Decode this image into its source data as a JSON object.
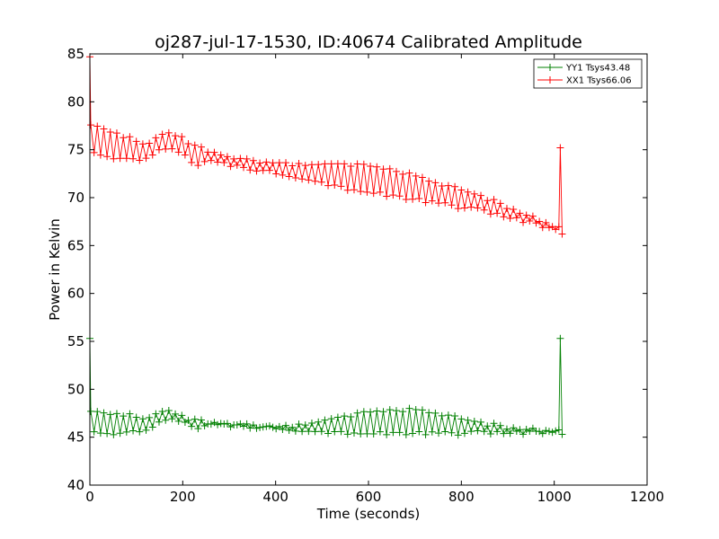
{
  "chart_data": {
    "type": "line",
    "title": "oj287-jul-17-1530, ID:40674 Calibrated Amplitude",
    "xlabel": "Time (seconds)",
    "ylabel": "Power in Kelvin",
    "xlim": [
      0,
      1200
    ],
    "ylim": [
      40,
      85
    ],
    "xticks": [
      0,
      200,
      400,
      600,
      800,
      1000,
      1200
    ],
    "yticks": [
      40,
      45,
      50,
      55,
      60,
      65,
      70,
      75,
      80,
      85
    ],
    "grid": false,
    "legend": "top-right",
    "marker": "+",
    "sample_step": 7,
    "series": [
      {
        "name": "YY1 Tsys43.48",
        "color": "#008000",
        "start_spike": [
          0,
          55.3
        ],
        "end_spike": [
          1013,
          55.3
        ],
        "x": [
          0,
          25,
          50,
          75,
          100,
          125,
          150,
          175,
          200,
          225,
          250,
          300,
          350,
          400,
          450,
          500,
          550,
          600,
          650,
          700,
          750,
          800,
          850,
          900,
          950,
          1000,
          1010
        ],
        "upper": [
          47.7,
          47.7,
          47.6,
          47.6,
          47.4,
          47.2,
          48.0,
          47.8,
          47.3,
          47.0,
          46.8,
          46.6,
          46.4,
          46.2,
          46.4,
          46.8,
          47.3,
          47.8,
          48.1,
          48.0,
          47.6,
          47.1,
          46.6,
          46.2,
          46.0,
          45.8,
          45.8
        ],
        "lower": [
          45.2,
          45.2,
          45.2,
          45.2,
          45.3,
          45.6,
          46.4,
          46.8,
          46.6,
          45.6,
          46.0,
          46.0,
          45.9,
          45.8,
          45.6,
          45.4,
          45.3,
          45.2,
          45.2,
          45.2,
          45.2,
          45.2,
          45.3,
          45.3,
          45.3,
          45.3,
          45.3
        ]
      },
      {
        "name": "XX1 Tsys66.06",
        "color": "#ff0000",
        "start_spike": [
          0,
          84.7
        ],
        "end_spike": [
          1013,
          75.2
        ],
        "x": [
          0,
          25,
          50,
          75,
          100,
          125,
          150,
          175,
          200,
          225,
          250,
          300,
          350,
          400,
          450,
          500,
          550,
          600,
          650,
          700,
          750,
          800,
          850,
          900,
          950,
          1000,
          1010
        ],
        "upper": [
          77.6,
          77.4,
          77.0,
          76.6,
          76.2,
          75.8,
          76.9,
          76.8,
          76.4,
          75.6,
          75.2,
          74.4,
          74.0,
          73.8,
          73.6,
          73.6,
          73.6,
          73.5,
          73.2,
          72.4,
          71.6,
          71.0,
          70.2,
          69.2,
          68.2,
          67.2,
          67.0
        ],
        "lower": [
          74.4,
          74.2,
          74.0,
          73.8,
          73.6,
          74.0,
          74.8,
          75.0,
          74.6,
          73.0,
          73.6,
          73.2,
          72.8,
          72.4,
          72.0,
          71.4,
          70.8,
          70.4,
          70.0,
          69.6,
          69.2,
          68.8,
          68.4,
          67.8,
          67.2,
          66.4,
          66.2
        ]
      }
    ]
  }
}
